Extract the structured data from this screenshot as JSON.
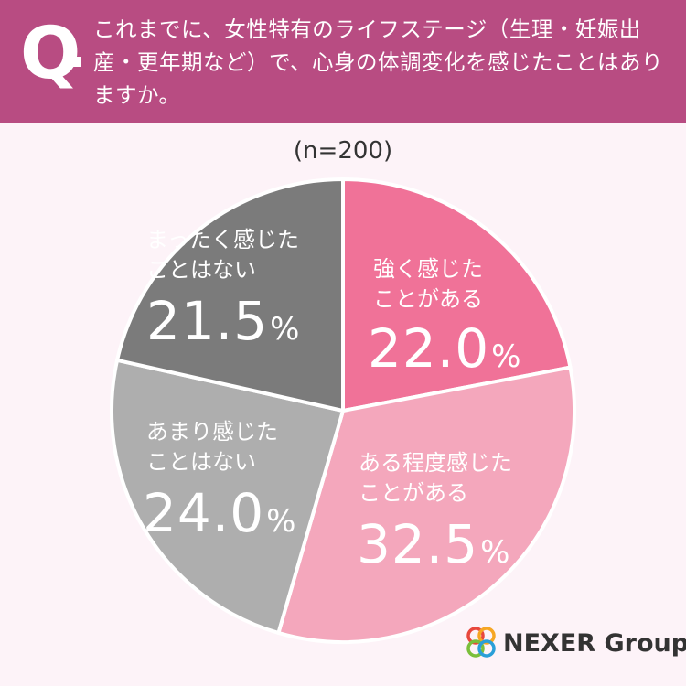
{
  "question": {
    "mark": "Q",
    "text": "これまでに、女性特有のライフステージ（生理・妊娠出産・更年期など）で、心身の体調変化を感じたことはありますか。"
  },
  "sample": "(n=200)",
  "chart_data": {
    "type": "pie",
    "title": "これまでに、女性特有のライフステージ（生理・妊娠出産・更年期など）で、心身の体調変化を感じたことはありますか。",
    "n": 200,
    "unit": "%",
    "slices": [
      {
        "label": "強く感じたことがある",
        "value": 22.0,
        "color": "#f07298"
      },
      {
        "label": "ある程度感じたことがある",
        "value": 32.5,
        "color": "#f4a7bc"
      },
      {
        "label": "あまり感じたことはない",
        "value": 24.0,
        "color": "#aeaeae"
      },
      {
        "label": "まったく感じたことはない",
        "value": 21.5,
        "color": "#7b7b7b"
      }
    ]
  },
  "labels": {
    "s0_line1": "強く感じた",
    "s0_line2": "ことがある",
    "s0_pct": "22.0",
    "s1_line1": "ある程度感じた",
    "s1_line2": "ことがある",
    "s1_pct": "32.5",
    "s2_line1": "あまり感じた",
    "s2_line2": "ことはない",
    "s2_pct": "24.0",
    "s3_line1": "まったく感じた",
    "s3_line2": "ことはない",
    "s3_pct": "21.5",
    "pct_unit": "%"
  },
  "logo": {
    "text": "NEXER Group",
    "colors": [
      "#e8473c",
      "#f6a623",
      "#7bbf3b",
      "#2a9fd8"
    ]
  }
}
